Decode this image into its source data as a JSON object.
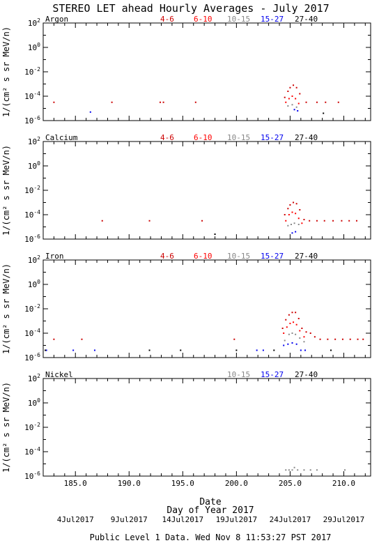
{
  "title": "STEREO LET ahead Hourly Averages - July 2017",
  "footer": "Public Level 1 Data. Wed Nov  8 11:53:27 PST 2017",
  "ylabel": "1/(cm² s sr MeV/n)",
  "xlabel_main": "Date",
  "xlabel_sub": "Day of Year 2017",
  "x_ticks": [
    "185.0",
    "190.0",
    "195.0",
    "200.0",
    "205.0",
    "210.0"
  ],
  "date_ticks": [
    {
      "label": "4Jul2017",
      "doy": 185
    },
    {
      "label": "9Jul2017",
      "doy": 190
    },
    {
      "label": "14Jul2017",
      "doy": 195
    },
    {
      "label": "19Jul2017",
      "doy": 200
    },
    {
      "label": "24Jul2017",
      "doy": 205
    },
    {
      "label": "29Jul2017",
      "doy": 210
    }
  ],
  "legend": [
    {
      "label": "4-6",
      "color": "#cc0000"
    },
    {
      "label": "6-10",
      "color": "#ff0000"
    },
    {
      "label": "10-15",
      "color": "#888888"
    },
    {
      "label": "15-27",
      "color": "#0000ee"
    },
    {
      "label": "27-40",
      "color": "#000000"
    }
  ],
  "chart_data": [
    {
      "type": "scatter",
      "panel": "Argon",
      "xlim": [
        182,
        212.5
      ],
      "ylim_exp": [
        -6,
        2
      ],
      "y_ticks": [
        "10^-6",
        "10^-4",
        "10^-2",
        "10^0",
        "10^2"
      ],
      "legend_visible": [
        "4-6",
        "6-10",
        "10-15",
        "15-27",
        "27-40"
      ],
      "series": [
        {
          "name": "4-6",
          "color": "#cc0000",
          "points": [
            [
              183.0,
              -4.5
            ],
            [
              188.4,
              -4.5
            ],
            [
              192.9,
              -4.5
            ],
            [
              193.2,
              -4.5
            ],
            [
              196.2,
              -4.5
            ],
            [
              204.5,
              -4.1
            ],
            [
              204.8,
              -3.6
            ],
            [
              205.0,
              -3.3
            ],
            [
              205.3,
              -3.1
            ],
            [
              205.6,
              -3.3
            ],
            [
              205.9,
              -3.8
            ],
            [
              206.5,
              -4.5
            ],
            [
              207.5,
              -4.5
            ],
            [
              208.3,
              -4.5
            ],
            [
              209.5,
              -4.5
            ]
          ]
        },
        {
          "name": "6-10",
          "color": "#ff0000",
          "points": [
            [
              204.6,
              -4.5
            ],
            [
              204.9,
              -4.2
            ],
            [
              205.2,
              -4.0
            ],
            [
              205.5,
              -4.2
            ],
            [
              205.8,
              -4.6
            ]
          ]
        },
        {
          "name": "10-15",
          "color": "#888888",
          "points": [
            [
              204.8,
              -4.8
            ],
            [
              205.2,
              -4.7
            ],
            [
              205.6,
              -4.9
            ]
          ]
        },
        {
          "name": "15-27",
          "color": "#0000ee",
          "points": [
            [
              186.4,
              -5.3
            ],
            [
              205.4,
              -5.1
            ],
            [
              205.7,
              -5.2
            ]
          ]
        },
        {
          "name": "27-40",
          "color": "#000000",
          "points": [
            [
              208.1,
              -5.4
            ]
          ]
        }
      ]
    },
    {
      "type": "scatter",
      "panel": "Calcium",
      "xlim": [
        182,
        212.5
      ],
      "ylim_exp": [
        -6,
        2
      ],
      "y_ticks": [
        "10^-6",
        "10^-4",
        "10^-2",
        "10^0",
        "10^2"
      ],
      "legend_visible": [
        "4-6",
        "6-10",
        "10-15",
        "15-27",
        "27-40"
      ],
      "series": [
        {
          "name": "4-6",
          "color": "#cc0000",
          "points": [
            [
              187.5,
              -4.5
            ],
            [
              191.9,
              -4.5
            ],
            [
              196.8,
              -4.5
            ],
            [
              204.5,
              -4.0
            ],
            [
              204.8,
              -3.5
            ],
            [
              205.0,
              -3.2
            ],
            [
              205.3,
              -3.0
            ],
            [
              205.6,
              -3.1
            ],
            [
              205.9,
              -3.6
            ],
            [
              206.3,
              -4.4
            ],
            [
              206.8,
              -4.5
            ],
            [
              207.5,
              -4.5
            ],
            [
              208.2,
              -4.5
            ],
            [
              209.0,
              -4.5
            ],
            [
              209.8,
              -4.5
            ],
            [
              210.5,
              -4.5
            ],
            [
              211.2,
              -4.5
            ]
          ]
        },
        {
          "name": "6-10",
          "color": "#ff0000",
          "points": [
            [
              204.6,
              -4.5
            ],
            [
              204.9,
              -4.0
            ],
            [
              205.2,
              -3.8
            ],
            [
              205.5,
              -3.9
            ],
            [
              205.8,
              -4.3
            ],
            [
              206.1,
              -4.7
            ]
          ]
        },
        {
          "name": "10-15",
          "color": "#888888",
          "points": [
            [
              204.8,
              -4.9
            ],
            [
              205.1,
              -4.8
            ],
            [
              205.4,
              -4.7
            ],
            [
              205.8,
              -4.8
            ]
          ]
        },
        {
          "name": "15-27",
          "color": "#0000ee",
          "points": [
            [
              205.2,
              -5.5
            ],
            [
              205.5,
              -5.4
            ]
          ]
        },
        {
          "name": "27-40",
          "color": "#000000",
          "points": [
            [
              198.0,
              -5.6
            ]
          ]
        }
      ]
    },
    {
      "type": "scatter",
      "panel": "Iron",
      "xlim": [
        182,
        212.5
      ],
      "ylim_exp": [
        -6,
        2
      ],
      "y_ticks": [
        "10^-6",
        "10^-4",
        "10^-2",
        "10^0",
        "10^2"
      ],
      "legend_visible": [
        "4-6",
        "6-10",
        "10-15",
        "15-27",
        "27-40"
      ],
      "series": [
        {
          "name": "4-6",
          "color": "#cc0000",
          "points": [
            [
              183.0,
              -4.5
            ],
            [
              185.6,
              -4.5
            ],
            [
              199.8,
              -4.5
            ],
            [
              204.3,
              -3.6
            ],
            [
              204.6,
              -2.9
            ],
            [
              204.9,
              -2.5
            ],
            [
              205.2,
              -2.3
            ],
            [
              205.5,
              -2.3
            ],
            [
              205.8,
              -2.8
            ],
            [
              206.1,
              -3.6
            ],
            [
              206.5,
              -3.9
            ],
            [
              206.9,
              -4.0
            ],
            [
              207.3,
              -4.3
            ],
            [
              207.8,
              -4.5
            ],
            [
              208.5,
              -4.5
            ],
            [
              209.2,
              -4.5
            ],
            [
              209.9,
              -4.5
            ],
            [
              210.6,
              -4.5
            ],
            [
              211.3,
              -4.5
            ],
            [
              211.8,
              -4.5
            ]
          ]
        },
        {
          "name": "6-10",
          "color": "#ff0000",
          "points": [
            [
              204.4,
              -4.0
            ],
            [
              204.7,
              -3.5
            ],
            [
              205.0,
              -3.2
            ],
            [
              205.3,
              -3.1
            ],
            [
              205.6,
              -3.3
            ],
            [
              205.9,
              -3.8
            ],
            [
              206.3,
              -4.3
            ]
          ]
        },
        {
          "name": "10-15",
          "color": "#888888",
          "points": [
            [
              204.5,
              -4.6
            ],
            [
              204.9,
              -4.1
            ],
            [
              205.2,
              -4.0
            ],
            [
              205.5,
              -4.1
            ],
            [
              205.9,
              -4.4
            ],
            [
              206.3,
              -4.7
            ]
          ]
        },
        {
          "name": "15-27",
          "color": "#0000ee",
          "points": [
            [
              182.3,
              -5.4
            ],
            [
              184.8,
              -5.4
            ],
            [
              186.8,
              -5.4
            ],
            [
              201.9,
              -5.4
            ],
            [
              202.5,
              -5.4
            ],
            [
              204.4,
              -5.0
            ],
            [
              204.8,
              -4.9
            ],
            [
              205.2,
              -4.8
            ],
            [
              205.6,
              -4.9
            ],
            [
              206.0,
              -5.4
            ],
            [
              206.4,
              -5.4
            ]
          ]
        },
        {
          "name": "27-40",
          "color": "#000000",
          "points": [
            [
              182.2,
              -5.4
            ],
            [
              191.9,
              -5.4
            ],
            [
              194.8,
              -5.4
            ],
            [
              200.0,
              -5.4
            ],
            [
              203.5,
              -5.4
            ],
            [
              208.8,
              -5.4
            ]
          ]
        }
      ]
    },
    {
      "type": "scatter",
      "panel": "Nickel",
      "xlim": [
        182,
        212.5
      ],
      "ylim_exp": [
        -6,
        2
      ],
      "y_ticks": [
        "10^-6",
        "10^-4",
        "10^-2",
        "10^0",
        "10^2"
      ],
      "legend_visible": [
        "10-15",
        "15-27",
        "27-40"
      ],
      "series": [
        {
          "name": "10-15",
          "color": "#888888",
          "points": [
            [
              204.6,
              -5.5
            ],
            [
              204.9,
              -5.5
            ],
            [
              205.2,
              -5.5
            ],
            [
              205.4,
              -5.3
            ],
            [
              205.7,
              -5.5
            ],
            [
              206.3,
              -5.5
            ],
            [
              206.9,
              -5.5
            ],
            [
              207.5,
              -5.5
            ],
            [
              210.1,
              -5.5
            ]
          ]
        },
        {
          "name": "15-27",
          "color": "#0000ee",
          "points": []
        },
        {
          "name": "27-40",
          "color": "#000000",
          "points": []
        }
      ]
    }
  ]
}
